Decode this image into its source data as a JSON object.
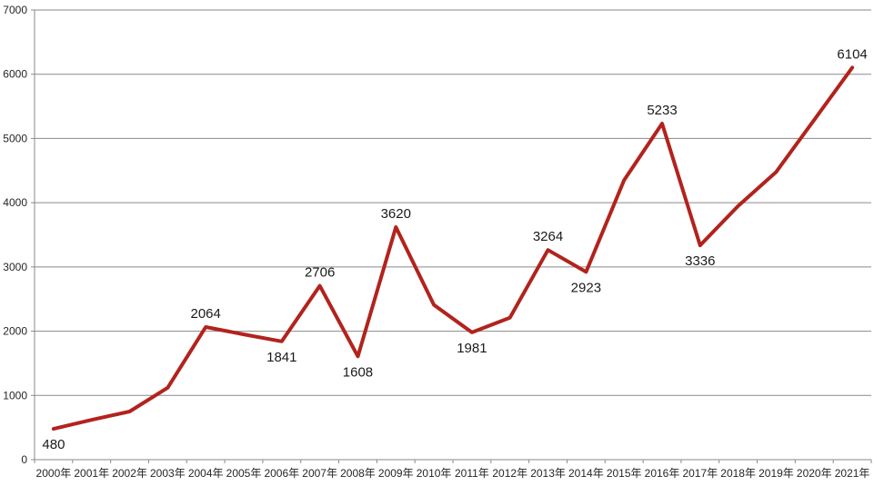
{
  "chart_data": {
    "type": "line",
    "title": "",
    "xlabel": "",
    "ylabel": "",
    "categories": [
      "2000年",
      "2001年",
      "2002年",
      "2003年",
      "2004年",
      "2005年",
      "2006年",
      "2007年",
      "2008年",
      "2009年",
      "2010年",
      "2011年",
      "2012年",
      "2013年",
      "2014年",
      "2015年",
      "2016年",
      "2017年",
      "2018年",
      "2019年",
      "2020年",
      "2021年"
    ],
    "values": [
      480,
      620,
      750,
      1120,
      2064,
      1950,
      1841,
      2706,
      1608,
      3620,
      2410,
      1981,
      2210,
      3264,
      2923,
      4350,
      5233,
      3336,
      3950,
      4480,
      5290,
      6104
    ],
    "data_labels": [
      {
        "index": 0,
        "text": "480",
        "position": "below"
      },
      {
        "index": 4,
        "text": "2064",
        "position": "above"
      },
      {
        "index": 6,
        "text": "1841",
        "position": "below"
      },
      {
        "index": 7,
        "text": "2706",
        "position": "above"
      },
      {
        "index": 8,
        "text": "1608",
        "position": "below"
      },
      {
        "index": 9,
        "text": "3620",
        "position": "above"
      },
      {
        "index": 11,
        "text": "1981",
        "position": "below"
      },
      {
        "index": 13,
        "text": "3264",
        "position": "above"
      },
      {
        "index": 14,
        "text": "2923",
        "position": "below"
      },
      {
        "index": 16,
        "text": "5233",
        "position": "above"
      },
      {
        "index": 17,
        "text": "3336",
        "position": "below"
      },
      {
        "index": 21,
        "text": "6104",
        "position": "above"
      }
    ],
    "y_axis": {
      "min": 0,
      "max": 7000,
      "step": 1000,
      "tick_labels": [
        "0",
        "1000",
        "2000",
        "3000",
        "4000",
        "5000",
        "6000",
        "7000"
      ]
    },
    "grid": true,
    "legend": false,
    "colors": {
      "line": "#b2231d",
      "gridline": "#8a8a8a",
      "axis": "#8a8a8a",
      "data_label": "#1a1a1a",
      "tick_label": "#262626",
      "background": "#ffffff"
    }
  }
}
